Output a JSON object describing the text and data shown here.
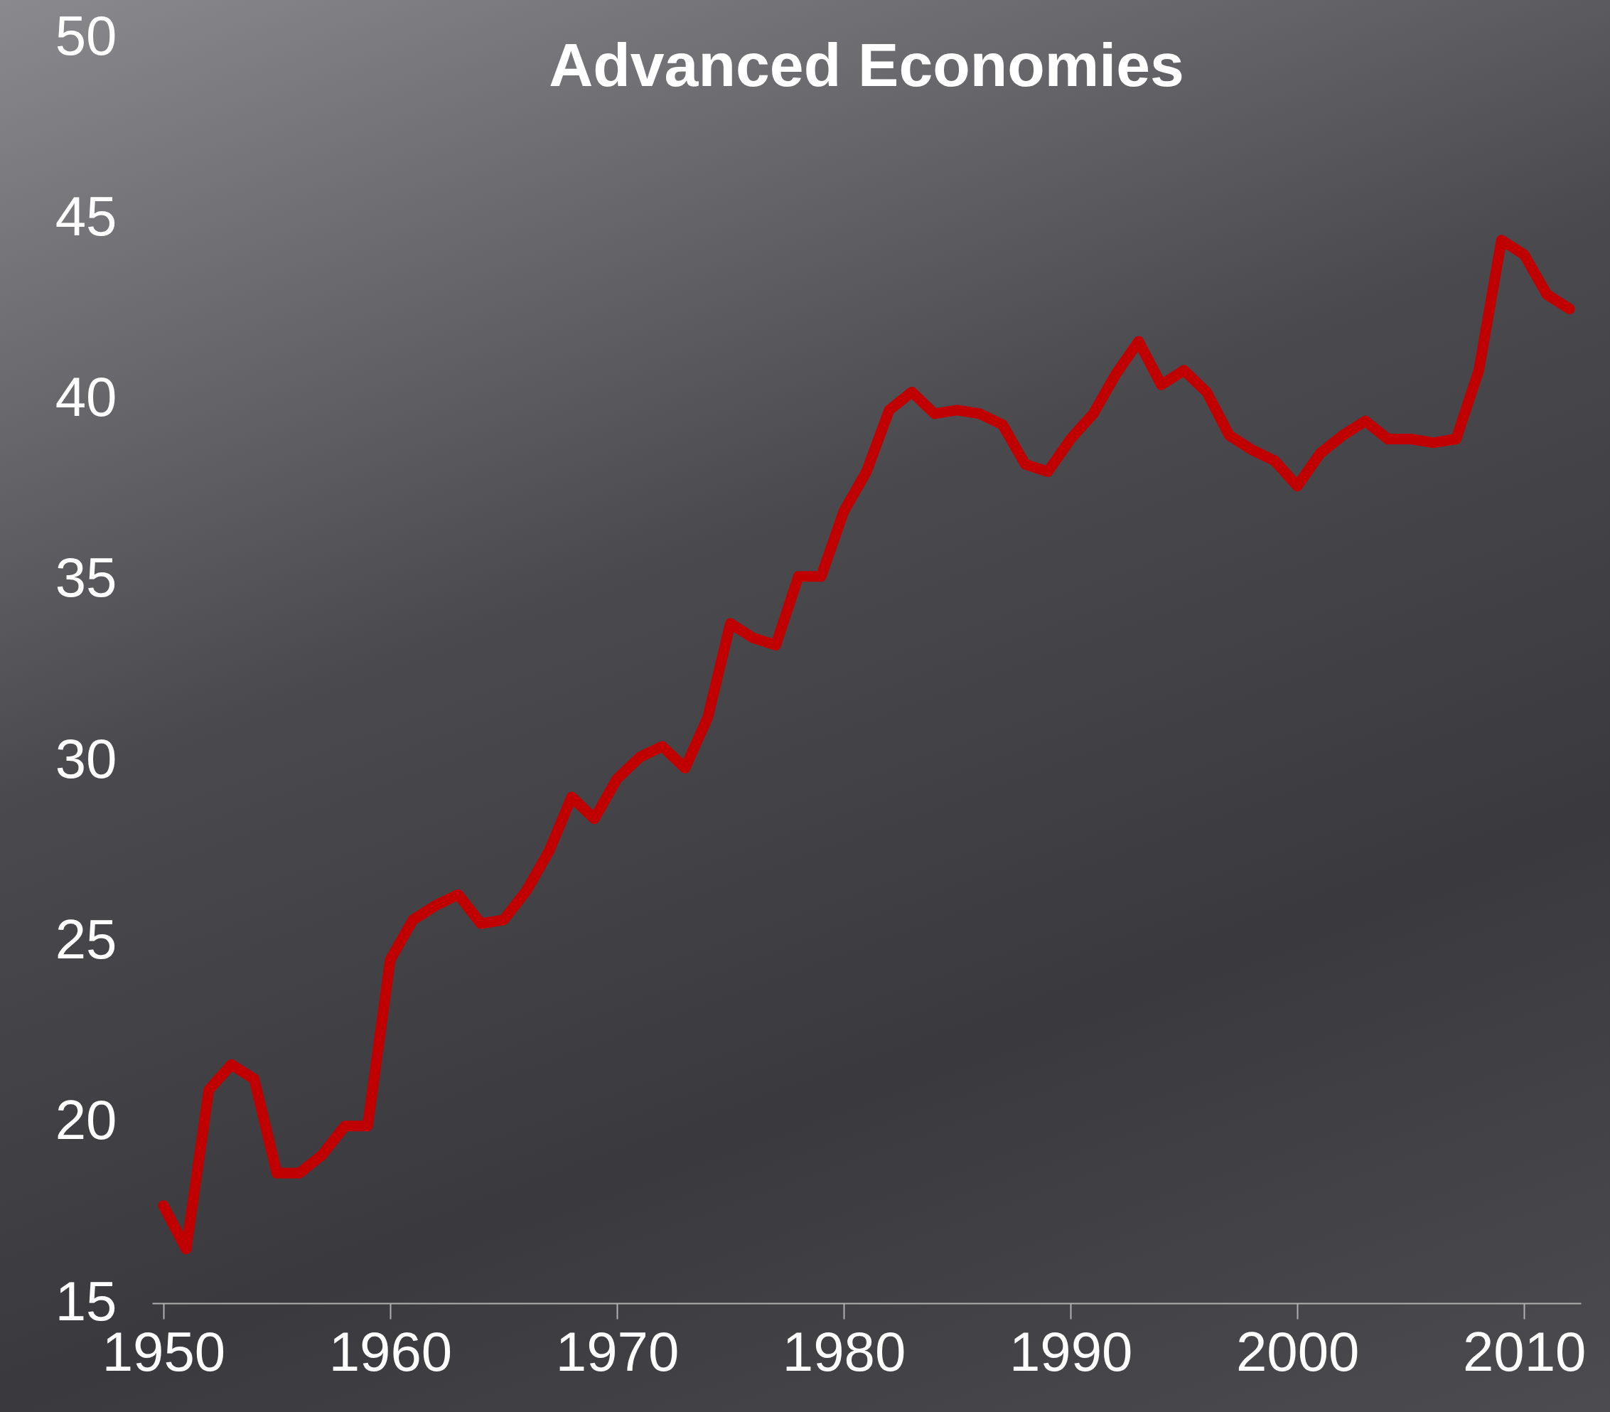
{
  "chart_data": {
    "type": "line",
    "title": "Advanced Economies",
    "x": [
      1950,
      1951,
      1952,
      1953,
      1954,
      1955,
      1956,
      1957,
      1958,
      1959,
      1960,
      1961,
      1962,
      1963,
      1964,
      1965,
      1966,
      1967,
      1968,
      1969,
      1970,
      1971,
      1972,
      1973,
      1974,
      1975,
      1976,
      1977,
      1978,
      1979,
      1980,
      1981,
      1982,
      1983,
      1984,
      1985,
      1986,
      1987,
      1988,
      1989,
      1990,
      1991,
      1992,
      1993,
      1994,
      1995,
      1996,
      1997,
      1998,
      1999,
      2000,
      2001,
      2002,
      2003,
      2004,
      2005,
      2006,
      2007,
      2008,
      2009,
      2010,
      2011,
      2012
    ],
    "series": [
      {
        "color": "#c00000",
        "values": [
          17.7,
          16.5,
          20.9,
          21.6,
          21.2,
          18.6,
          18.6,
          19.1,
          19.9,
          19.9,
          24.5,
          25.6,
          26.0,
          26.3,
          25.5,
          25.6,
          26.4,
          27.5,
          29.0,
          28.4,
          29.5,
          30.1,
          30.4,
          29.8,
          31.2,
          33.8,
          33.4,
          33.2,
          35.1,
          35.1,
          36.9,
          38.0,
          39.7,
          40.2,
          39.6,
          39.7,
          39.6,
          39.3,
          38.2,
          38.0,
          38.9,
          39.6,
          40.7,
          41.6,
          40.4,
          40.8,
          40.2,
          39.0,
          38.6,
          38.3,
          37.6,
          38.5,
          39.0,
          39.4,
          38.9,
          38.9,
          38.8,
          38.9,
          40.8,
          44.4,
          44.0,
          42.9,
          42.5
        ]
      }
    ],
    "xlim": [
      1949.5,
      2012.5
    ],
    "xticks": [
      1950,
      1960,
      1970,
      1980,
      1990,
      2000,
      2010
    ],
    "ylim": [
      15,
      50
    ],
    "yticks": [
      15,
      20,
      25,
      30,
      35,
      40,
      45,
      50
    ],
    "grid": false,
    "marker": "none",
    "line_style": "solid"
  }
}
